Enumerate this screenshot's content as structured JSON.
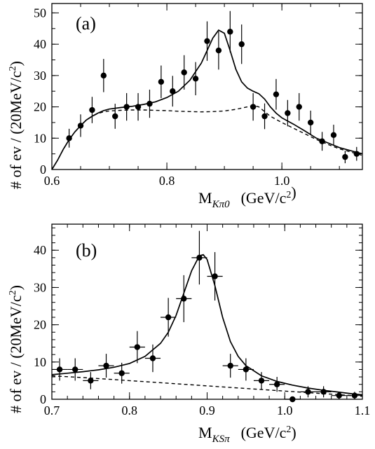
{
  "chart_data": [
    {
      "type": "scatter",
      "panel": "(a)",
      "xlabel": {
        "base": "M",
        "sub": "Kπ0",
        "unit": "(GeV/c",
        "unit_sup": "2",
        "unit_close": ")"
      },
      "ylabel": {
        "text": "# of ev / (20MeV/c",
        "sup": "2",
        "close": ")"
      },
      "xlim": [
        0.6,
        1.14
      ],
      "ylim": [
        0,
        53
      ],
      "xticks": [
        0.6,
        0.8,
        1.0
      ],
      "xtick_labels": [
        "0.6",
        "0.8",
        "1.0"
      ],
      "yticks": [
        0,
        10,
        20,
        30,
        40,
        50
      ],
      "ytick_labels": [
        "0",
        "10",
        "20",
        "30",
        "40",
        "50"
      ],
      "x_minor_step": 0.05,
      "y_minor_step": 5,
      "points": [
        {
          "x": 0.63,
          "y": 10,
          "err": 3.0
        },
        {
          "x": 0.65,
          "y": 14,
          "err": 3.6
        },
        {
          "x": 0.67,
          "y": 19,
          "err": 4.2
        },
        {
          "x": 0.69,
          "y": 30,
          "err": 5.3
        },
        {
          "x": 0.71,
          "y": 17,
          "err": 4.0
        },
        {
          "x": 0.73,
          "y": 20,
          "err": 4.4
        },
        {
          "x": 0.75,
          "y": 20,
          "err": 4.4
        },
        {
          "x": 0.77,
          "y": 21,
          "err": 4.5
        },
        {
          "x": 0.79,
          "y": 28,
          "err": 5.2
        },
        {
          "x": 0.81,
          "y": 25,
          "err": 4.9
        },
        {
          "x": 0.83,
          "y": 31,
          "err": 5.5
        },
        {
          "x": 0.85,
          "y": 29,
          "err": 5.3
        },
        {
          "x": 0.87,
          "y": 41,
          "err": 6.3
        },
        {
          "x": 0.89,
          "y": 38,
          "err": 6.1
        },
        {
          "x": 0.91,
          "y": 44,
          "err": 6.6
        },
        {
          "x": 0.93,
          "y": 40,
          "err": 6.3
        },
        {
          "x": 0.95,
          "y": 20,
          "err": 4.4
        },
        {
          "x": 0.97,
          "y": 17,
          "err": 4.1
        },
        {
          "x": 0.99,
          "y": 24,
          "err": 4.9
        },
        {
          "x": 1.01,
          "y": 18,
          "err": 4.2
        },
        {
          "x": 1.03,
          "y": 20,
          "err": 4.4
        },
        {
          "x": 1.05,
          "y": 15,
          "err": 3.8
        },
        {
          "x": 1.07,
          "y": 9,
          "err": 3.0
        },
        {
          "x": 1.09,
          "y": 11,
          "err": 3.3
        },
        {
          "x": 1.11,
          "y": 4,
          "err": 2.0
        },
        {
          "x": 1.13,
          "y": 5,
          "err": 2.2
        }
      ],
      "fit_curve": [
        [
          0.6,
          0
        ],
        [
          0.61,
          3
        ],
        [
          0.62,
          6.5
        ],
        [
          0.63,
          9.5
        ],
        [
          0.64,
          12
        ],
        [
          0.65,
          14
        ],
        [
          0.66,
          15.8
        ],
        [
          0.67,
          17
        ],
        [
          0.68,
          18
        ],
        [
          0.69,
          18.8
        ],
        [
          0.7,
          19.3
        ],
        [
          0.72,
          19.8
        ],
        [
          0.74,
          20.2
        ],
        [
          0.76,
          20.8
        ],
        [
          0.78,
          21.6
        ],
        [
          0.8,
          23
        ],
        [
          0.82,
          25
        ],
        [
          0.84,
          28.5
        ],
        [
          0.86,
          34
        ],
        [
          0.87,
          38
        ],
        [
          0.88,
          42
        ],
        [
          0.89,
          44.5
        ],
        [
          0.9,
          43.5
        ],
        [
          0.91,
          38
        ],
        [
          0.92,
          32
        ],
        [
          0.93,
          28
        ],
        [
          0.94,
          26
        ],
        [
          0.95,
          25
        ],
        [
          0.96,
          24.2
        ],
        [
          0.97,
          22.5
        ],
        [
          0.98,
          20
        ],
        [
          0.99,
          18
        ],
        [
          1.0,
          16.5
        ],
        [
          1.02,
          14.5
        ],
        [
          1.04,
          12.3
        ],
        [
          1.06,
          10
        ],
        [
          1.08,
          8.5
        ],
        [
          1.1,
          7
        ],
        [
          1.12,
          6
        ],
        [
          1.14,
          5
        ]
      ],
      "background_curve": [
        [
          0.6,
          0
        ],
        [
          0.61,
          3
        ],
        [
          0.62,
          6.5
        ],
        [
          0.63,
          9.5
        ],
        [
          0.64,
          12
        ],
        [
          0.65,
          14
        ],
        [
          0.66,
          15.8
        ],
        [
          0.67,
          17
        ],
        [
          0.68,
          17.9
        ],
        [
          0.69,
          18.4
        ],
        [
          0.7,
          18.7
        ],
        [
          0.72,
          18.9
        ],
        [
          0.74,
          19
        ],
        [
          0.76,
          19
        ],
        [
          0.78,
          18.9
        ],
        [
          0.8,
          18.8
        ],
        [
          0.82,
          18.6
        ],
        [
          0.84,
          18.5
        ],
        [
          0.86,
          18.4
        ],
        [
          0.88,
          18.5
        ],
        [
          0.9,
          18.7
        ],
        [
          0.92,
          19.2
        ],
        [
          0.94,
          20
        ],
        [
          0.95,
          20.5
        ],
        [
          0.96,
          20
        ],
        [
          0.97,
          18.5
        ],
        [
          0.98,
          17
        ],
        [
          1.0,
          15
        ],
        [
          1.02,
          13.2
        ],
        [
          1.04,
          11.4
        ],
        [
          1.06,
          9.6
        ],
        [
          1.08,
          8
        ],
        [
          1.1,
          6.6
        ],
        [
          1.12,
          5.6
        ],
        [
          1.14,
          4.5
        ]
      ]
    },
    {
      "type": "scatter",
      "panel": "(b)",
      "xlabel": {
        "base": "M",
        "sub": "KSπ",
        "unit": "(GeV/c",
        "unit_sup": "2",
        "unit_close": ")"
      },
      "ylabel": {
        "text": "# of ev / (20MeV/c",
        "sup": "2",
        "close": ")"
      },
      "xlim": [
        0.7,
        1.1
      ],
      "ylim": [
        0,
        47
      ],
      "xticks": [
        0.7,
        0.8,
        0.9,
        1.0,
        1.1
      ],
      "xtick_labels": [
        "0.7",
        "0.8",
        "0.9",
        "1.0",
        "1.1"
      ],
      "yticks": [
        0,
        10,
        20,
        30,
        40
      ],
      "ytick_labels": [
        "0",
        "10",
        "20",
        "30",
        "40"
      ],
      "x_minor_step": 0.02,
      "y_minor_step": 2,
      "xerr": 0.01,
      "points": [
        {
          "x": 0.71,
          "y": 8,
          "err": 3.0
        },
        {
          "x": 0.73,
          "y": 8,
          "err": 3.0
        },
        {
          "x": 0.75,
          "y": 5,
          "err": 2.3
        },
        {
          "x": 0.77,
          "y": 9,
          "err": 3.2
        },
        {
          "x": 0.79,
          "y": 7,
          "err": 2.8
        },
        {
          "x": 0.81,
          "y": 14,
          "err": 4.3
        },
        {
          "x": 0.83,
          "y": 11,
          "err": 3.7
        },
        {
          "x": 0.85,
          "y": 22,
          "err": 5.2
        },
        {
          "x": 0.87,
          "y": 27,
          "err": 6.3
        },
        {
          "x": 0.89,
          "y": 38,
          "err": 7.2
        },
        {
          "x": 0.91,
          "y": 33,
          "err": 6.5
        },
        {
          "x": 0.93,
          "y": 9,
          "err": 3.2
        },
        {
          "x": 0.95,
          "y": 8,
          "err": 3.0
        },
        {
          "x": 0.97,
          "y": 5,
          "err": 2.3
        },
        {
          "x": 0.99,
          "y": 4,
          "err": 2.0
        },
        {
          "x": 1.01,
          "y": 0,
          "err": 0
        },
        {
          "x": 1.03,
          "y": 2,
          "err": 1.5
        },
        {
          "x": 1.05,
          "y": 2,
          "err": 1.5
        },
        {
          "x": 1.07,
          "y": 1,
          "err": 1.0
        },
        {
          "x": 1.09,
          "y": 1,
          "err": 1.0
        }
      ],
      "fit_curve": [
        [
          0.7,
          6.6
        ],
        [
          0.72,
          7
        ],
        [
          0.74,
          7.4
        ],
        [
          0.76,
          7.9
        ],
        [
          0.78,
          8.6
        ],
        [
          0.8,
          9.6
        ],
        [
          0.82,
          11.5
        ],
        [
          0.84,
          15
        ],
        [
          0.85,
          18
        ],
        [
          0.86,
          22.5
        ],
        [
          0.87,
          28.5
        ],
        [
          0.88,
          34.5
        ],
        [
          0.89,
          38.5
        ],
        [
          0.895,
          38.8
        ],
        [
          0.9,
          37.5
        ],
        [
          0.91,
          30.5
        ],
        [
          0.92,
          22
        ],
        [
          0.93,
          15.5
        ],
        [
          0.94,
          11.5
        ],
        [
          0.95,
          9
        ],
        [
          0.97,
          6.3
        ],
        [
          0.99,
          4.8
        ],
        [
          1.01,
          3.8
        ],
        [
          1.03,
          3
        ],
        [
          1.05,
          2.4
        ],
        [
          1.07,
          1.9
        ],
        [
          1.09,
          1.4
        ],
        [
          1.1,
          1.2
        ]
      ],
      "background_curve": [
        [
          0.7,
          6.3
        ],
        [
          0.75,
          5.7
        ],
        [
          0.8,
          5
        ],
        [
          0.85,
          4.3
        ],
        [
          0.9,
          3.6
        ],
        [
          0.95,
          2.9
        ],
        [
          1.0,
          2.2
        ],
        [
          1.05,
          1.5
        ],
        [
          1.1,
          0.8
        ]
      ]
    }
  ]
}
